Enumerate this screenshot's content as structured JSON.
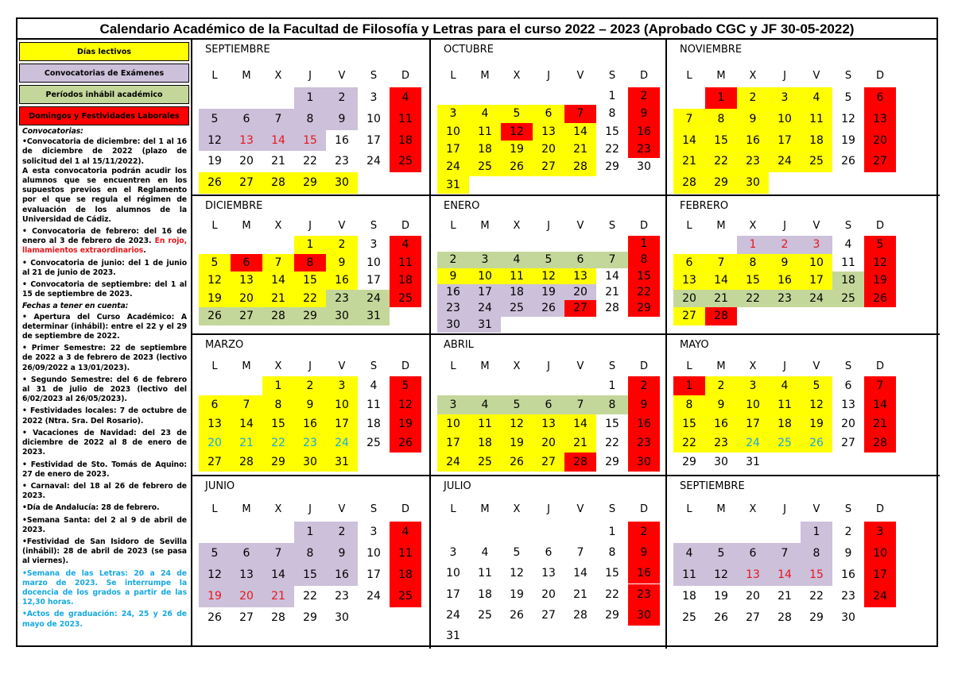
{
  "title": "Calendario Académico de la Facultad de Filosofía y Letras para el curso 2022 – 2023 (Aprobado CGC y JF 30-05-2022)",
  "colors": {
    "yellow": "#ffff00",
    "purple": "#ccc0da",
    "green": "#c4d79b",
    "red": "#ff0000",
    "red_text": "#e8151b",
    "cyan_text": "#17a9e1"
  },
  "legend": [
    {
      "label": "Días lectivos",
      "color": "yellow"
    },
    {
      "label": "Convocatorias de Exámenes",
      "color": "purple"
    },
    {
      "label": "Períodos inhábil académico",
      "color": "green"
    },
    {
      "label": "Domingos y Festividades Laborales",
      "color": "red"
    }
  ],
  "notes": {
    "convocatorias_heading": "Convocatorias:",
    "dic": "•Convocatoria de diciembre: del 1 al 16 de diciembre de 2022 (plazo de solicitud del 1 al 15/11/2022).",
    "dic2": "A esta convocatoria podrán acudir los alumnos que se encuentren en los supuestos previos en el Reglamento por el que se regula el régimen de evaluación de los alumnos de la Universidad de Cádiz.",
    "feb": "• Convocatoria de febrero: del 16 de enero al 3 de febrero de 2023.",
    "feb_red": "En rojo, llamamientos extraordinarios",
    "jun": "• Convocatoria de junio: del 1 de junio al 21 de junio de 2023.",
    "sep": "• Convocatoria de septiembre: del 1 al 15 de septiembre de 2023.",
    "fechas_heading": "Fechas a tener en cuenta:",
    "items": [
      "• Apertura del Curso Académico: A determinar (inhábil): entre el 22 y el 29 de septiembre de 2022.",
      "• Primer Semestre: 22 de septiembre de 2022 a 3 de febrero de 2023 (lectivo 26/09/2022 a 13/01/2023).",
      "• Segundo Semestre: del 6 de febrero al 31 de julio de 2023 (lectivo del 6/02/2023 al 26/05/2023).",
      "• Festividades locales: 7 de octubre de 2022 (Ntra. Sra. Del Rosario).",
      "• Vacaciones de Navidad: del 23 de diciembre de 2022 al 8 de enero de 2023.",
      "• Festividad de Sto. Tomás de Aquino: 27 de enero de 2023.",
      "• Carnaval: del 18 al 26 de febrero de 2023.",
      "•Día de Andalucía: 28 de febrero.",
      "•Semana Santa: del 2 al 9 de abril de 2023.",
      "•Festividad de San Isidoro de Sevilla (inhábil): 28 de abril de 2023 (se pasa al viernes)."
    ],
    "cyan_items": [
      "•Semana de las Letras: 20 a 24 de marzo de 2023. Se interrumpe la docencia de los grados a partir de las 12,30 horas.",
      "•Actos de graduación: 24, 25 y 26 de mayo de 2023."
    ]
  },
  "weekdays": [
    "L",
    "M",
    "X",
    "J",
    "V",
    "S",
    "D"
  ],
  "months": [
    {
      "name": "SEPTIEMBRE",
      "first_weekday": 3,
      "styles": [
        "p",
        "p",
        "",
        "r",
        "p",
        "p",
        "p",
        "p",
        "p",
        "",
        "r",
        "p",
        "pR",
        "pR",
        "pR",
        "",
        "",
        "r",
        "",
        "",
        "",
        "",
        "",
        "",
        "r",
        "y",
        "y",
        "y",
        "y",
        "y"
      ]
    },
    {
      "name": "OCTUBRE",
      "first_weekday": 5,
      "styles": [
        "",
        "r",
        "y",
        "y",
        "y",
        "y",
        "r",
        "",
        "r",
        "y",
        "y",
        "r",
        "y",
        "y",
        "",
        "r",
        "y",
        "y",
        "y",
        "y",
        "y",
        "",
        "r",
        "y",
        "y",
        "y",
        "y",
        "y",
        "",
        "",
        "y"
      ]
    },
    {
      "name": "NOVIEMBRE",
      "first_weekday": 1,
      "styles": [
        "r",
        "y",
        "y",
        "y",
        "",
        "r",
        "y",
        "y",
        "y",
        "y",
        "y",
        "",
        "r",
        "y",
        "y",
        "y",
        "y",
        "y",
        "",
        "r",
        "y",
        "y",
        "y",
        "y",
        "y",
        "",
        "r",
        "y",
        "y",
        "y"
      ]
    },
    {
      "name": "DICIEMBRE",
      "first_weekday": 3,
      "styles": [
        "y",
        "y",
        "",
        "r",
        "y",
        "r",
        "y",
        "r",
        "y",
        "",
        "r",
        "y",
        "y",
        "y",
        "y",
        "y",
        "",
        "r",
        "y",
        "y",
        "y",
        "y",
        "g",
        "g",
        "r",
        "g",
        "g",
        "g",
        "g",
        "g",
        "g"
      ]
    },
    {
      "name": "ENERO",
      "first_weekday": 6,
      "styles": [
        "r",
        "g",
        "g",
        "g",
        "g",
        "g",
        "g",
        "r",
        "y",
        "y",
        "y",
        "y",
        "y",
        "",
        "r",
        "p",
        "p",
        "p",
        "p",
        "p",
        "",
        "r",
        "p",
        "p",
        "p",
        "p",
        "r",
        "",
        "r",
        "p",
        "p"
      ]
    },
    {
      "name": "FEBRERO",
      "first_weekday": 2,
      "styles": [
        "pR",
        "pR",
        "pR",
        "",
        "r",
        "y",
        "y",
        "y",
        "y",
        "y",
        "",
        "r",
        "y",
        "y",
        "y",
        "y",
        "y",
        "g",
        "r",
        "g",
        "g",
        "g",
        "g",
        "g",
        "g",
        "r",
        "y",
        "r"
      ]
    },
    {
      "name": "MARZO",
      "first_weekday": 2,
      "styles": [
        "y",
        "y",
        "y",
        "",
        "r",
        "y",
        "y",
        "y",
        "y",
        "y",
        "",
        "r",
        "y",
        "y",
        "y",
        "y",
        "y",
        "",
        "r",
        "yC",
        "yC",
        "yC",
        "yC",
        "yC",
        "",
        "r",
        "y",
        "y",
        "y",
        "y",
        "y"
      ]
    },
    {
      "name": "ABRIL",
      "first_weekday": 5,
      "styles": [
        "",
        "r",
        "g",
        "g",
        "g",
        "g",
        "g",
        "g",
        "r",
        "y",
        "y",
        "y",
        "y",
        "y",
        "",
        "r",
        "y",
        "y",
        "y",
        "y",
        "y",
        "",
        "r",
        "y",
        "y",
        "y",
        "y",
        "r",
        "",
        "r"
      ]
    },
    {
      "name": "MAYO",
      "first_weekday": 0,
      "styles": [
        "r",
        "y",
        "y",
        "y",
        "y",
        "",
        "r",
        "y",
        "y",
        "y",
        "y",
        "y",
        "",
        "r",
        "y",
        "y",
        "y",
        "y",
        "y",
        "",
        "r",
        "y",
        "y",
        "yC",
        "yC",
        "yC",
        "",
        "r",
        "",
        "",
        ""
      ]
    },
    {
      "name": "JUNIO",
      "first_weekday": 3,
      "styles": [
        "p",
        "p",
        "",
        "r",
        "p",
        "p",
        "p",
        "p",
        "p",
        "",
        "r",
        "p",
        "p",
        "p",
        "p",
        "p",
        "",
        "r",
        "pR",
        "pR",
        "pR",
        "",
        "",
        "",
        "r",
        "",
        "",
        "",
        "",
        ""
      ]
    },
    {
      "name": "JULIO",
      "first_weekday": 5,
      "styles": [
        "",
        "r",
        "",
        "",
        "",
        "",
        "",
        "",
        "r",
        "",
        "",
        "",
        "",
        "",
        "",
        "r",
        "",
        "",
        "",
        "",
        "",
        "",
        "r",
        "",
        "",
        "",
        "",
        "",
        "",
        "r",
        ""
      ]
    },
    {
      "name": "SEPTIEMBRE",
      "first_weekday": 4,
      "styles": [
        "p",
        "",
        "r",
        "p",
        "p",
        "p",
        "p",
        "p",
        "",
        "r",
        "p",
        "p",
        "pR",
        "pR",
        "pR",
        "",
        "r",
        "",
        "",
        "",
        "",
        "",
        "",
        "r",
        "",
        "",
        "",
        "",
        "",
        ""
      ]
    }
  ]
}
